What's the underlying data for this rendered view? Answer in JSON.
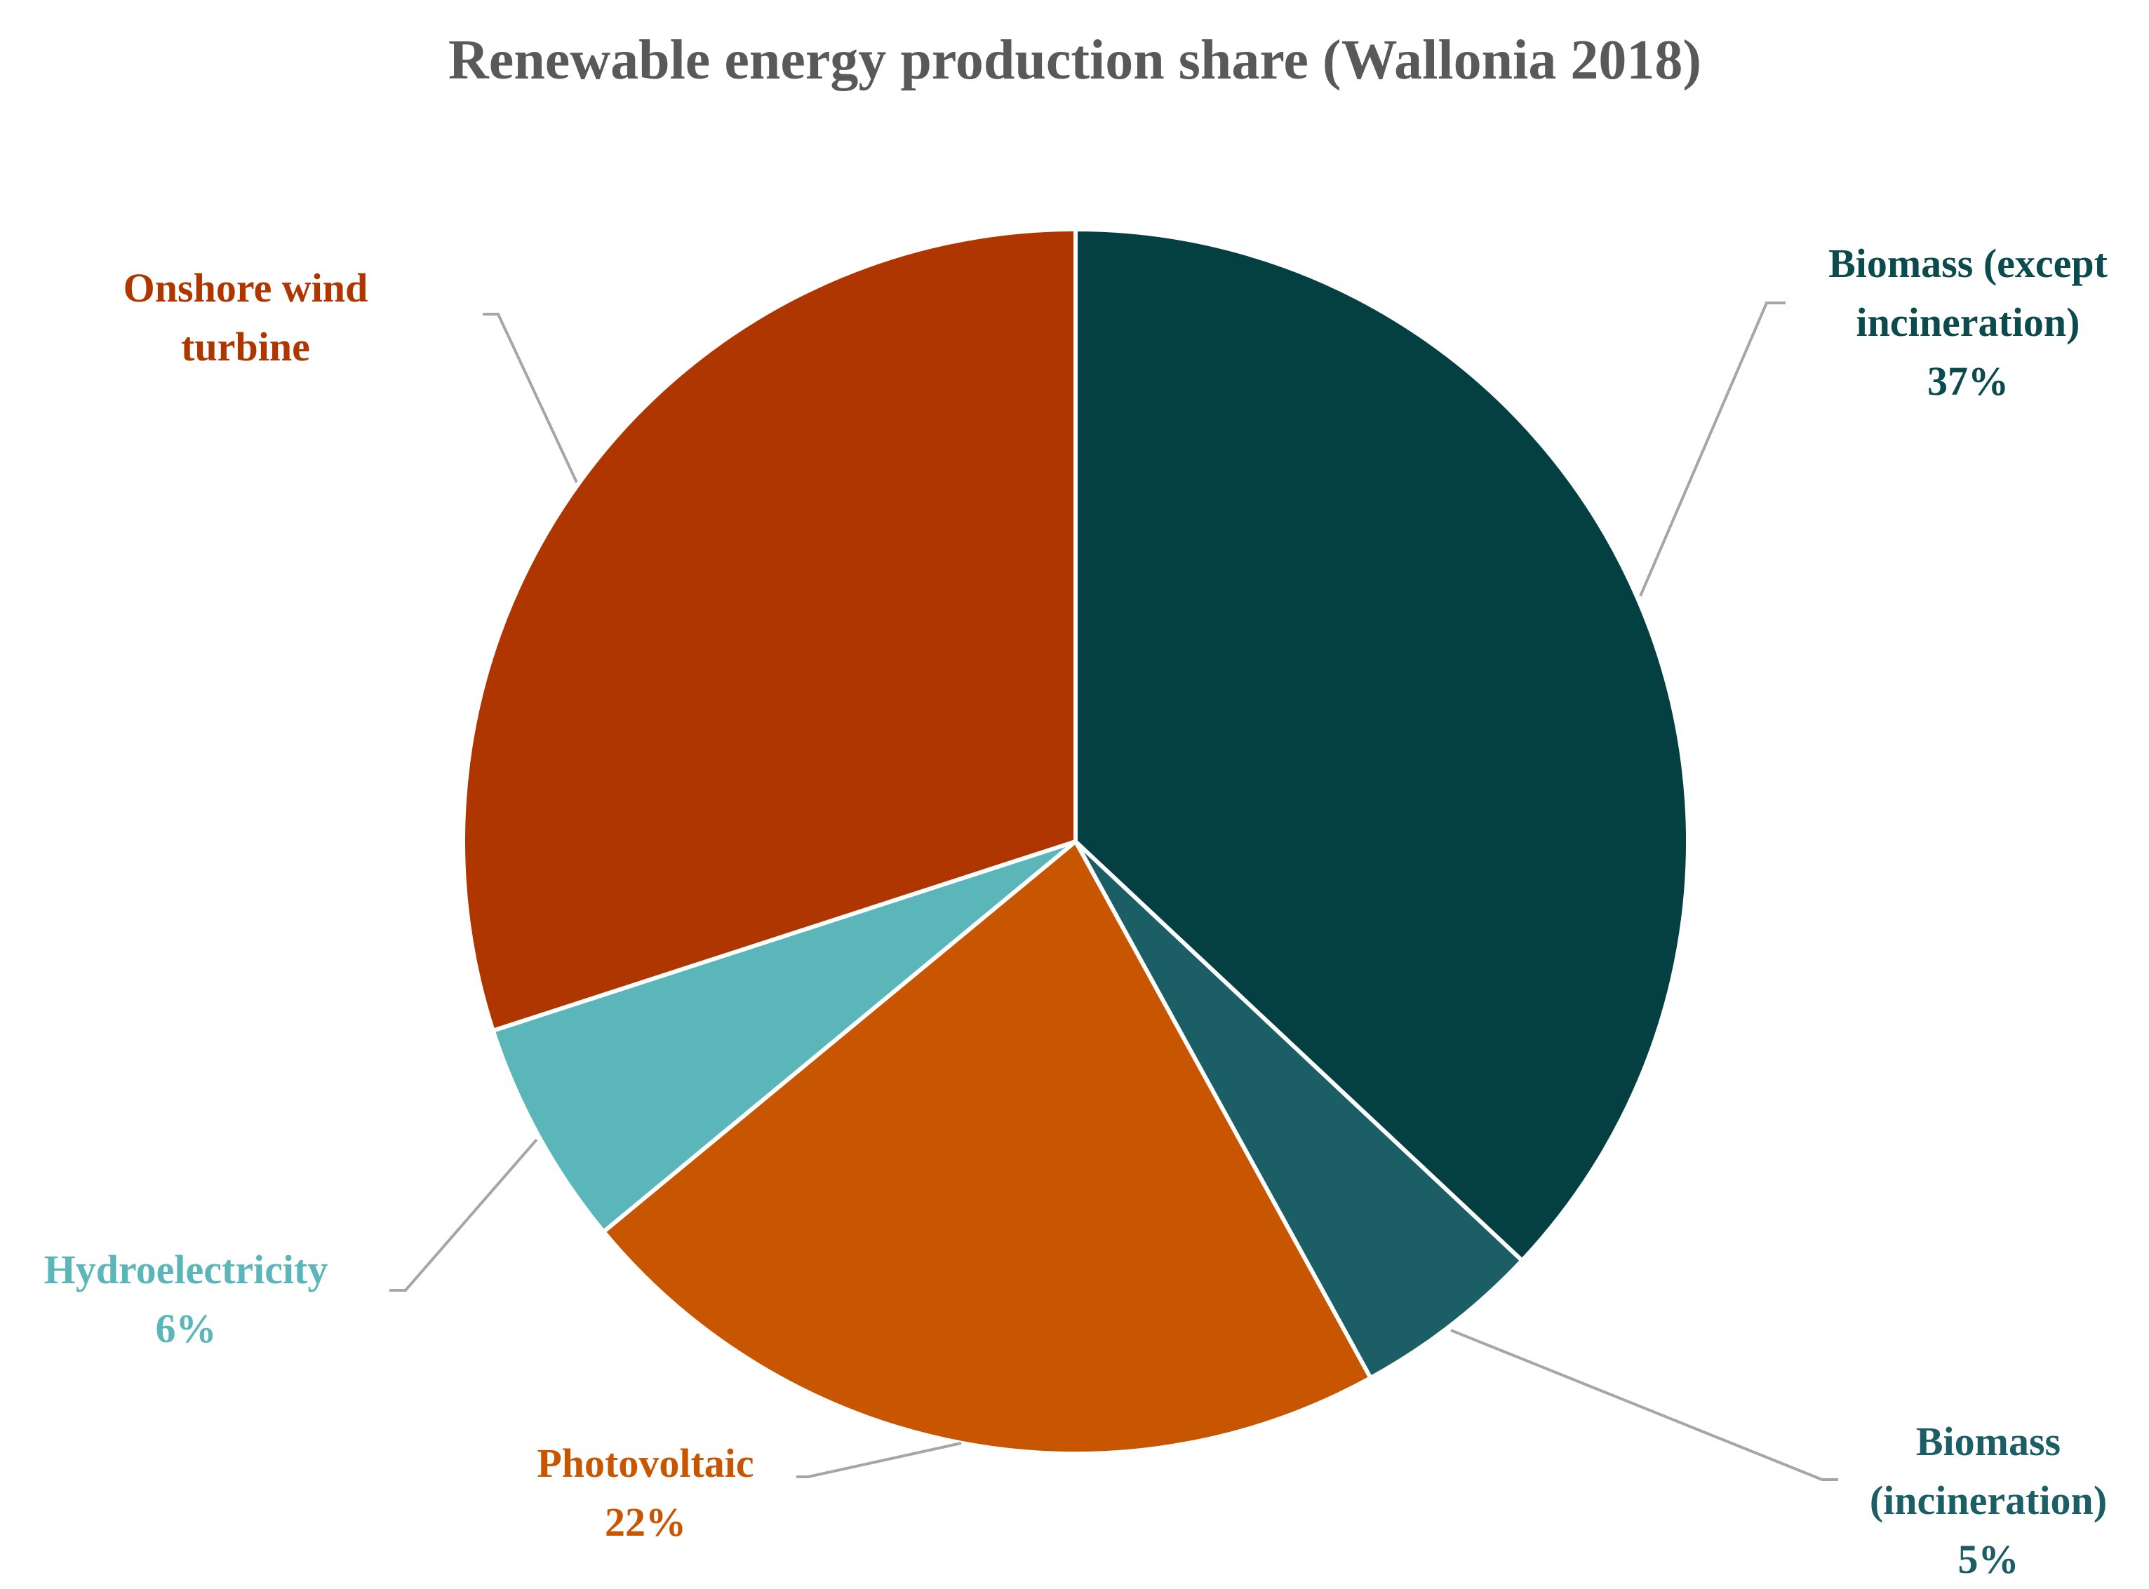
{
  "chart_data": {
    "type": "pie",
    "title": "Renewable energy production share (Wallonia 2018)",
    "slices": [
      {
        "name": "Biomass (except incineration)",
        "value": 37,
        "label": "37%",
        "color": "#043f42",
        "label_color": "#0b4a4d",
        "label_lines": [
          "Biomass (except",
          "incineration)",
          "37%"
        ]
      },
      {
        "name": "Biomass (incineration)",
        "value": 5,
        "label": "5%",
        "color": "#1b5e66",
        "label_color": "#1b5e66",
        "label_lines": [
          "Biomass",
          "(incineration)",
          "5%"
        ]
      },
      {
        "name": "Photovoltaic",
        "value": 22,
        "label": "22%",
        "color": "#c85500",
        "label_color": "#c85500",
        "label_lines": [
          "Photovoltaic",
          "22%"
        ]
      },
      {
        "name": "Hydroelectricity",
        "value": 6,
        "label": "6%",
        "color": "#5ab6b8",
        "label_color": "#5ab6b8",
        "label_lines": [
          "Hydroelectricity",
          "6%"
        ]
      },
      {
        "name": "Onshore wind turbine",
        "value": 30,
        "label": "",
        "color": "#b03600",
        "label_color": "#b03600",
        "label_lines": [
          "Onshore wind",
          "turbine"
        ]
      }
    ],
    "start_angle_deg": 0,
    "direction": "clockwise",
    "legend": "none"
  }
}
